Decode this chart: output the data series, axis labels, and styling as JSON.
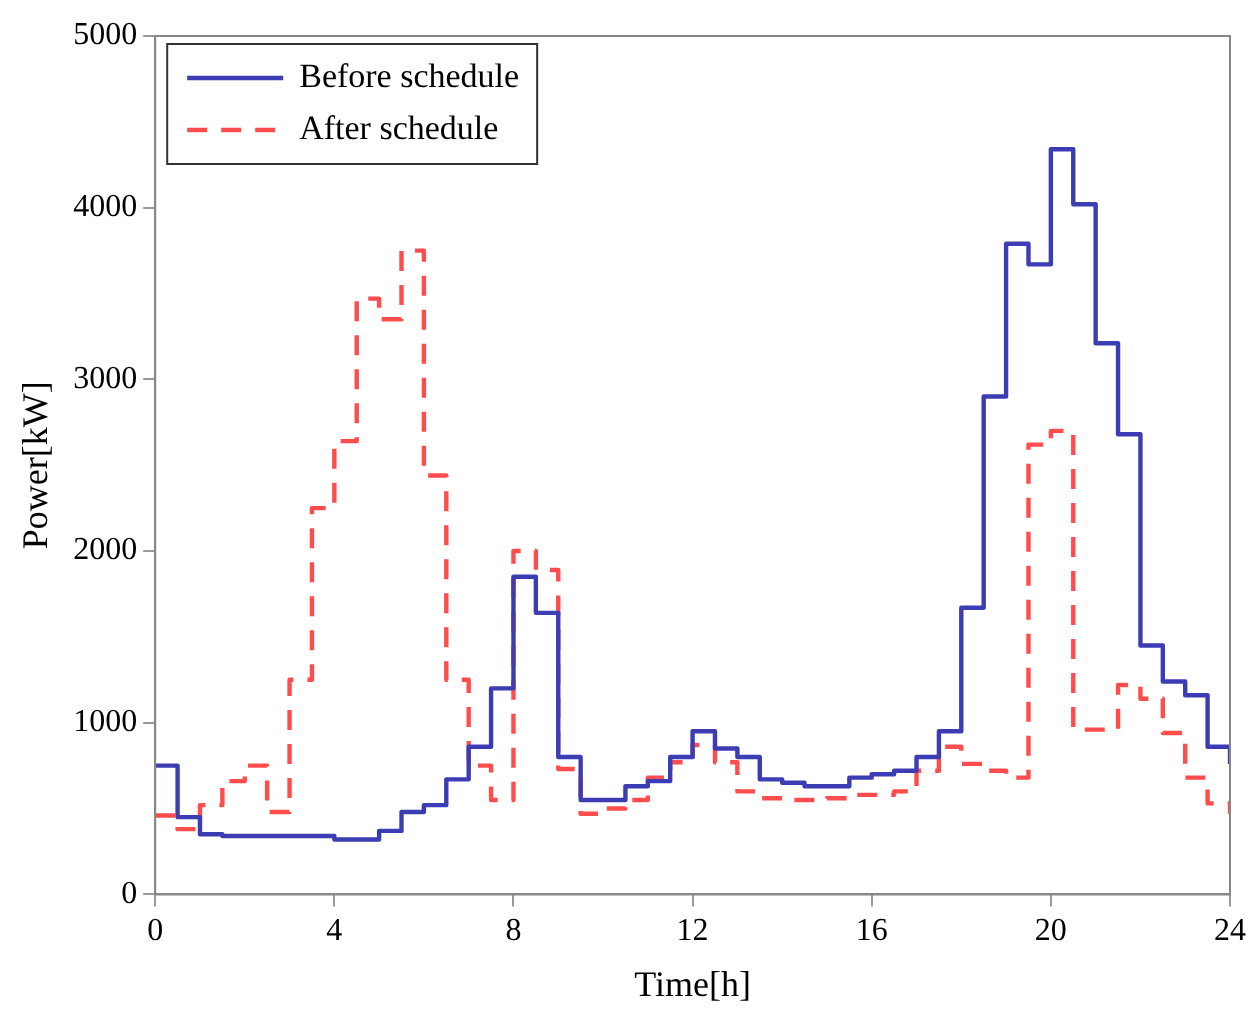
{
  "chart_data": {
    "type": "step",
    "xlabel": "Time[h]",
    "ylabel": "Power[kW]",
    "x": [
      0,
      0.5,
      1,
      1.5,
      2,
      2.5,
      3,
      3.5,
      4,
      4.5,
      5,
      5.5,
      6,
      6.5,
      7,
      7.5,
      8,
      8.5,
      9,
      9.5,
      10,
      10.5,
      11,
      11.5,
      12,
      12.5,
      13,
      13.5,
      14,
      14.5,
      15,
      15.5,
      16,
      16.5,
      17,
      17.5,
      18,
      18.5,
      19,
      19.5,
      20,
      20.5,
      21,
      21.5,
      22,
      22.5,
      23,
      23.5,
      24
    ],
    "series": [
      {
        "name": "Before schedule",
        "color": "#3c3cb4",
        "line_style": "solid",
        "values": [
          750,
          450,
          350,
          340,
          340,
          340,
          340,
          340,
          320,
          320,
          370,
          480,
          520,
          670,
          860,
          1200,
          1850,
          1640,
          800,
          550,
          550,
          630,
          660,
          800,
          950,
          850,
          800,
          670,
          650,
          630,
          630,
          680,
          700,
          720,
          800,
          950,
          1670,
          2900,
          3790,
          3670,
          4340,
          4020,
          3210,
          2680,
          1450,
          1240,
          1160,
          860,
          760
        ]
      },
      {
        "name": "After schedule",
        "color": "#ff4d4d",
        "line_style": "dashed",
        "values": [
          460,
          380,
          520,
          660,
          750,
          480,
          1250,
          2250,
          2640,
          3470,
          3350,
          3750,
          2440,
          1250,
          750,
          550,
          2000,
          1890,
          730,
          470,
          500,
          550,
          680,
          770,
          870,
          770,
          600,
          560,
          550,
          550,
          560,
          580,
          580,
          600,
          720,
          860,
          760,
          720,
          680,
          2620,
          2700,
          960,
          960,
          1220,
          1140,
          940,
          680,
          530,
          470
        ]
      }
    ],
    "xlim": [
      0,
      24
    ],
    "xticks": [
      0,
      4,
      8,
      12,
      16,
      20,
      24
    ],
    "ylim": [
      0,
      5000
    ],
    "yticks": [
      0,
      1000,
      2000,
      3000,
      4000,
      5000
    ],
    "grid": false,
    "legend": "top left",
    "marker": "none"
  }
}
